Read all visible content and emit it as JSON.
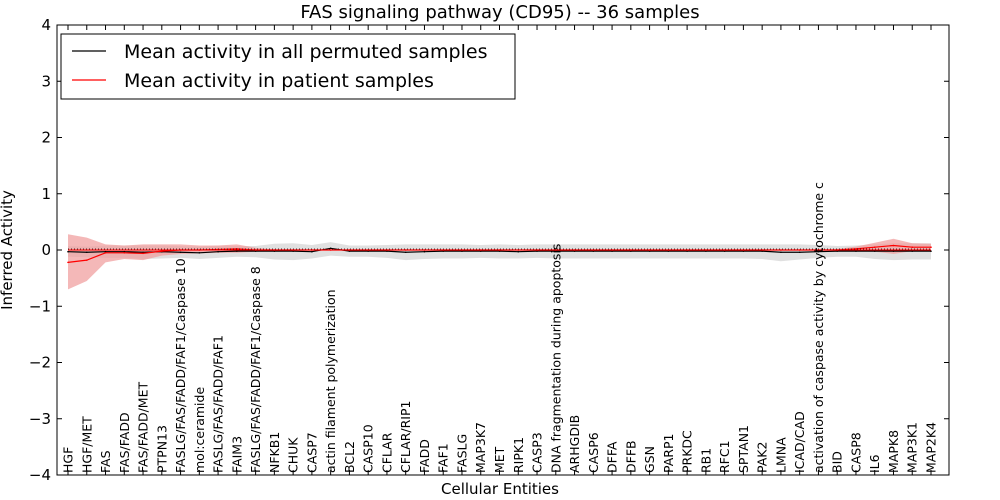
{
  "chart_data": {
    "type": "line",
    "title": "FAS signaling pathway (CD95) -- 36 samples",
    "xlabel": "Cellular Entities",
    "ylabel": "Inferred Activity",
    "ylim": [
      -4,
      4
    ],
    "yticks": [
      -4,
      -3,
      -2,
      -1,
      0,
      1,
      2,
      3,
      4
    ],
    "ytick_labels": [
      "−4",
      "−3",
      "−2",
      "−1",
      "0",
      "1",
      "2",
      "3",
      "4"
    ],
    "legend_position": "top-left",
    "grid": false,
    "categories": [
      "HGF",
      "HGF/MET",
      "FAS",
      "FAS/FADD",
      "FAS/FADD/MET",
      "PTPN13",
      "FASLG/FAS/FADD/FAF1/Caspase 10",
      "mol:ceramide",
      "FASLG/FAS/FADD/FAF1",
      "FAIM3",
      "FASLG/FAS/FADD/FAF1/Caspase 8",
      "NFKB1",
      "CHUK",
      "CASP7",
      "actin filament polymerization",
      "BCL2",
      "CASP10",
      "CFLAR",
      "CFLAR/RIP1",
      "FADD",
      "FAF1",
      "FASLG",
      "MAP3K7",
      "MET",
      "RIPK1",
      "CASP3",
      "DNA fragmentation during apoptosis",
      "ARHGDIB",
      "CASP6",
      "DFFA",
      "DFFB",
      "GSN",
      "PARP1",
      "PRKDC",
      "RB1",
      "RFC1",
      "SPTAN1",
      "PAK2",
      "LMNA",
      "ICAD/CAD",
      "activation of caspase activity by cytochrome c",
      "BID",
      "CASP8",
      "IL6",
      "MAPK8",
      "MAP3K1",
      "MAP2K4"
    ],
    "series": [
      {
        "name": "Mean activity in all permuted samples",
        "color": "#000000",
        "band_color": "#cccccc",
        "values": [
          -0.03,
          -0.04,
          -0.03,
          -0.03,
          -0.04,
          -0.03,
          -0.04,
          -0.05,
          -0.03,
          -0.02,
          -0.02,
          -0.02,
          -0.02,
          -0.03,
          0.03,
          -0.02,
          -0.02,
          -0.02,
          -0.04,
          -0.03,
          -0.02,
          -0.02,
          -0.02,
          -0.02,
          -0.03,
          -0.02,
          -0.02,
          -0.02,
          -0.02,
          -0.02,
          -0.02,
          -0.02,
          -0.02,
          -0.02,
          -0.02,
          -0.02,
          -0.02,
          -0.02,
          -0.04,
          -0.04,
          -0.03,
          -0.02,
          -0.02,
          -0.02,
          -0.02,
          -0.02,
          -0.02
        ],
        "lower": [
          -0.12,
          -0.13,
          -0.14,
          -0.14,
          -0.16,
          -0.15,
          -0.14,
          -0.16,
          -0.14,
          -0.12,
          -0.13,
          -0.17,
          -0.18,
          -0.15,
          -0.1,
          -0.12,
          -0.12,
          -0.14,
          -0.18,
          -0.16,
          -0.15,
          -0.15,
          -0.14,
          -0.15,
          -0.15,
          -0.14,
          -0.15,
          -0.15,
          -0.15,
          -0.15,
          -0.15,
          -0.15,
          -0.15,
          -0.15,
          -0.15,
          -0.15,
          -0.15,
          -0.16,
          -0.2,
          -0.17,
          -0.14,
          -0.12,
          -0.12,
          -0.16,
          -0.18,
          -0.17,
          -0.17
        ],
        "upper": [
          0.07,
          0.06,
          0.08,
          0.08,
          0.08,
          0.08,
          0.07,
          0.06,
          0.08,
          0.07,
          0.07,
          0.11,
          0.12,
          0.09,
          0.14,
          0.08,
          0.08,
          0.09,
          0.1,
          0.1,
          0.1,
          0.1,
          0.09,
          0.1,
          0.09,
          0.1,
          0.1,
          0.1,
          0.1,
          0.1,
          0.1,
          0.1,
          0.1,
          0.1,
          0.1,
          0.1,
          0.1,
          0.1,
          0.1,
          0.1,
          0.09,
          0.07,
          0.08,
          0.1,
          0.12,
          0.12,
          0.12
        ]
      },
      {
        "name": "Mean activity in patient samples",
        "color": "#ff0000",
        "band_color": "#f0a0a0",
        "values": [
          -0.22,
          -0.18,
          -0.05,
          -0.05,
          -0.06,
          -0.02,
          0.0,
          0.0,
          0.01,
          0.02,
          0.0,
          0.0,
          0.0,
          0.0,
          0.0,
          0.0,
          0.0,
          0.0,
          0.0,
          0.0,
          0.0,
          0.0,
          0.0,
          0.0,
          0.0,
          0.0,
          0.0,
          0.0,
          0.0,
          0.0,
          0.0,
          0.0,
          0.0,
          0.0,
          0.0,
          0.0,
          0.0,
          0.0,
          0.0,
          0.0,
          0.0,
          0.0,
          0.02,
          0.05,
          0.08,
          0.05,
          0.05
        ],
        "lower": [
          -0.7,
          -0.55,
          -0.22,
          -0.16,
          -0.18,
          -0.1,
          -0.07,
          -0.06,
          -0.05,
          -0.05,
          -0.03,
          -0.01,
          -0.01,
          -0.01,
          -0.01,
          -0.01,
          -0.01,
          -0.01,
          -0.01,
          -0.01,
          -0.01,
          -0.01,
          -0.01,
          -0.01,
          -0.01,
          -0.01,
          -0.01,
          -0.01,
          -0.01,
          -0.01,
          -0.01,
          -0.01,
          -0.01,
          -0.01,
          -0.01,
          -0.01,
          -0.01,
          -0.01,
          -0.01,
          -0.01,
          -0.01,
          -0.01,
          -0.02,
          -0.03,
          -0.07,
          -0.02,
          -0.01
        ],
        "upper": [
          0.28,
          0.22,
          0.1,
          0.08,
          0.1,
          0.1,
          0.1,
          0.08,
          0.08,
          0.1,
          0.04,
          0.01,
          0.01,
          0.01,
          0.01,
          0.01,
          0.01,
          0.01,
          0.01,
          0.01,
          0.01,
          0.01,
          0.01,
          0.01,
          0.01,
          0.01,
          0.01,
          0.01,
          0.01,
          0.01,
          0.01,
          0.01,
          0.01,
          0.01,
          0.01,
          0.01,
          0.01,
          0.01,
          0.01,
          0.01,
          0.01,
          0.02,
          0.06,
          0.13,
          0.2,
          0.12,
          0.11
        ]
      }
    ]
  }
}
